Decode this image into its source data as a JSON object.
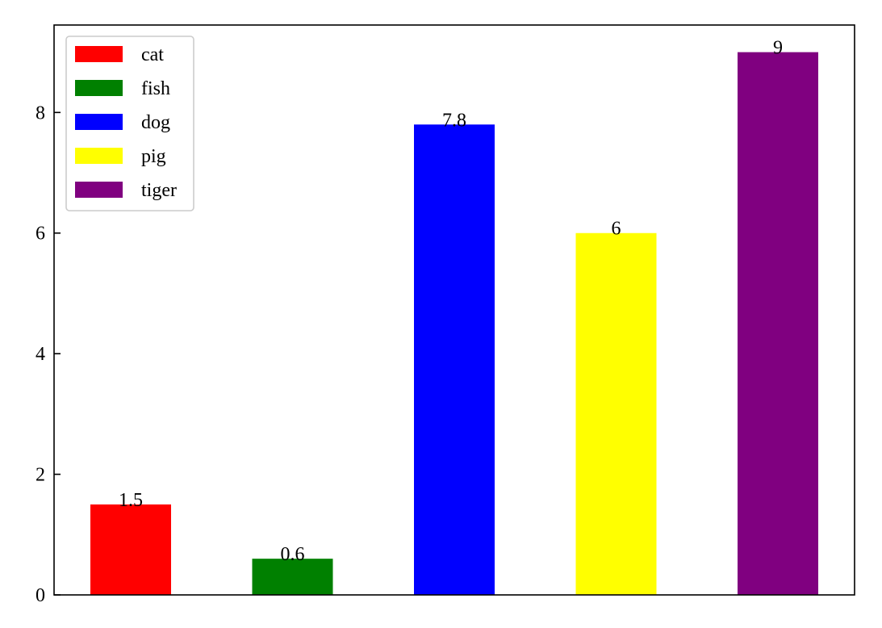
{
  "chart_data": {
    "type": "bar",
    "categories": [
      "cat",
      "fish",
      "dog",
      "pig",
      "tiger"
    ],
    "values": [
      1.5,
      0.6,
      7.8,
      6,
      9
    ],
    "data_labels": [
      "1.5",
      "0.6",
      "7.8",
      "6",
      "9"
    ],
    "colors": [
      "#ff0000",
      "#008000",
      "#0000ff",
      "#ffff00",
      "#800080"
    ],
    "title": "",
    "xlabel": "",
    "ylabel": "",
    "ylim": [
      0,
      9.45
    ],
    "yticks": [
      0,
      2,
      4,
      6,
      8
    ],
    "ytick_labels": [
      "0",
      "2",
      "4",
      "6",
      "8"
    ],
    "xticks_visible": false,
    "grid": false,
    "legend": {
      "placement": "top-left",
      "entries": [
        "cat",
        "fish",
        "dog",
        "pig",
        "tiger"
      ]
    }
  }
}
